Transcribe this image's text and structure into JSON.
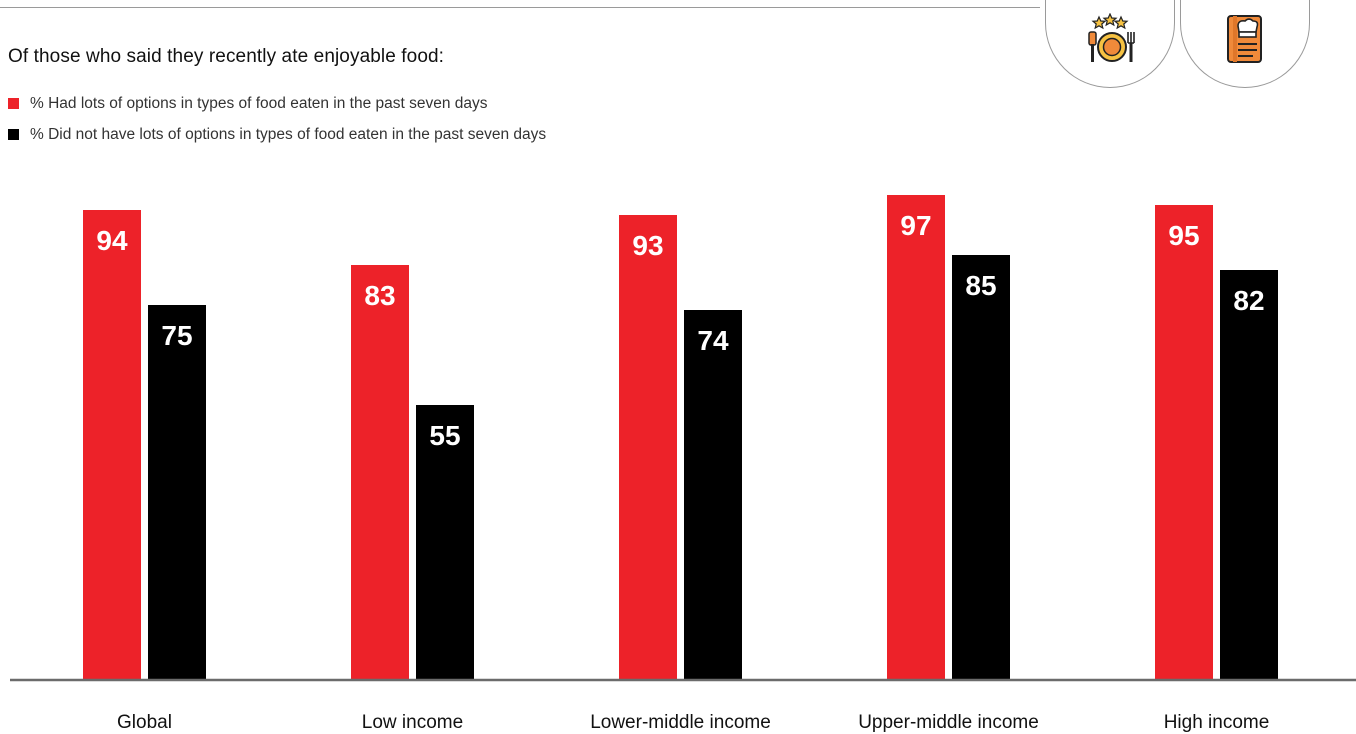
{
  "header": {
    "subtitle": "Of those who said they recently ate enjoyable food:"
  },
  "icons": [
    "dining-plate-stars-icon",
    "recipe-book-chef-icon"
  ],
  "colors": {
    "series_1": "#ED2229",
    "series_2": "#000000",
    "baseline": "#6b6b6b",
    "icon_orange": "#F08A3A",
    "icon_yellow": "#F6C242"
  },
  "chart_data": {
    "type": "bar",
    "title": "",
    "xlabel": "",
    "ylabel": "",
    "ylim": [
      0,
      100
    ],
    "grid": false,
    "legend_position": "top-left",
    "categories": [
      "Global",
      "Low income",
      "Lower-middle income",
      "Upper-middle income",
      "High income"
    ],
    "series": [
      {
        "name": "% Had lots of options in types of food eaten in the past seven days",
        "color": "#ED2229",
        "values": [
          94,
          83,
          93,
          97,
          95
        ]
      },
      {
        "name": "% Did not have lots of options in types of food eaten in the past seven days",
        "color": "#000000",
        "values": [
          75,
          55,
          74,
          85,
          82
        ]
      }
    ]
  }
}
